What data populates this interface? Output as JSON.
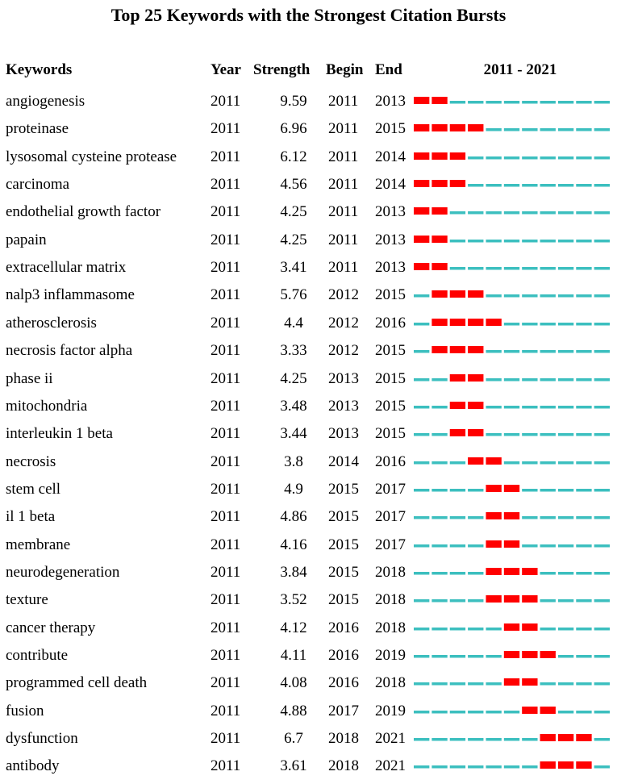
{
  "chart_data": {
    "type": "table",
    "title": "Top 25 Keywords with the Strongest Citation Bursts",
    "columns": [
      "Keywords",
      "Year",
      "Strength",
      "Begin",
      "End"
    ],
    "range_label": "2011 - 2021",
    "period": [
      2011,
      2021
    ],
    "colors": {
      "burst": "#ff0000",
      "normal": "#3cbfbf"
    },
    "rows": [
      {
        "keyword": "angiogenesis",
        "year": "2011",
        "strength": "9.59",
        "begin": "2011",
        "end": "2013"
      },
      {
        "keyword": "proteinase",
        "year": "2011",
        "strength": "6.96",
        "begin": "2011",
        "end": "2015"
      },
      {
        "keyword": "lysosomal cysteine protease",
        "year": "2011",
        "strength": "6.12",
        "begin": "2011",
        "end": "2014"
      },
      {
        "keyword": "carcinoma",
        "year": "2011",
        "strength": "4.56",
        "begin": "2011",
        "end": "2014"
      },
      {
        "keyword": "endothelial growth factor",
        "year": "2011",
        "strength": "4.25",
        "begin": "2011",
        "end": "2013"
      },
      {
        "keyword": "papain",
        "year": "2011",
        "strength": "4.25",
        "begin": "2011",
        "end": "2013"
      },
      {
        "keyword": "extracellular matrix",
        "year": "2011",
        "strength": "3.41",
        "begin": "2011",
        "end": "2013"
      },
      {
        "keyword": "nalp3 inflammasome",
        "year": "2011",
        "strength": "5.76",
        "begin": "2012",
        "end": "2015"
      },
      {
        "keyword": "atherosclerosis",
        "year": "2011",
        "strength": "4.4",
        "begin": "2012",
        "end": "2016"
      },
      {
        "keyword": "necrosis factor alpha",
        "year": "2011",
        "strength": "3.33",
        "begin": "2012",
        "end": "2015"
      },
      {
        "keyword": "phase ii",
        "year": "2011",
        "strength": "4.25",
        "begin": "2013",
        "end": "2015"
      },
      {
        "keyword": "mitochondria",
        "year": "2011",
        "strength": "3.48",
        "begin": "2013",
        "end": "2015"
      },
      {
        "keyword": "interleukin 1 beta",
        "year": "2011",
        "strength": "3.44",
        "begin": "2013",
        "end": "2015"
      },
      {
        "keyword": "necrosis",
        "year": "2011",
        "strength": "3.8",
        "begin": "2014",
        "end": "2016"
      },
      {
        "keyword": "stem cell",
        "year": "2011",
        "strength": "4.9",
        "begin": "2015",
        "end": "2017"
      },
      {
        "keyword": "il 1 beta",
        "year": "2011",
        "strength": "4.86",
        "begin": "2015",
        "end": "2017"
      },
      {
        "keyword": "membrane",
        "year": "2011",
        "strength": "4.16",
        "begin": "2015",
        "end": "2017"
      },
      {
        "keyword": "neurodegeneration",
        "year": "2011",
        "strength": "3.84",
        "begin": "2015",
        "end": "2018"
      },
      {
        "keyword": "texture",
        "year": "2011",
        "strength": "3.52",
        "begin": "2015",
        "end": "2018"
      },
      {
        "keyword": "cancer therapy",
        "year": "2011",
        "strength": "4.12",
        "begin": "2016",
        "end": "2018"
      },
      {
        "keyword": "contribute",
        "year": "2011",
        "strength": "4.11",
        "begin": "2016",
        "end": "2019"
      },
      {
        "keyword": "programmed cell death",
        "year": "2011",
        "strength": "4.08",
        "begin": "2016",
        "end": "2018"
      },
      {
        "keyword": "fusion",
        "year": "2011",
        "strength": "4.88",
        "begin": "2017",
        "end": "2019"
      },
      {
        "keyword": "dysfunction",
        "year": "2011",
        "strength": "6.7",
        "begin": "2018",
        "end": "2021"
      },
      {
        "keyword": "antibody",
        "year": "2011",
        "strength": "3.61",
        "begin": "2018",
        "end": "2021"
      }
    ]
  }
}
